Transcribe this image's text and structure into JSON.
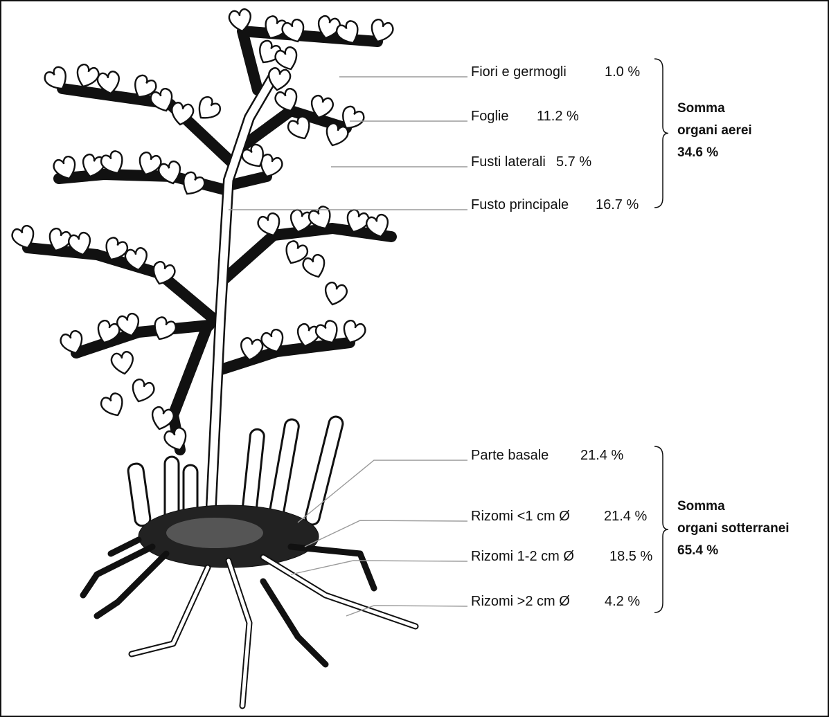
{
  "aerial": {
    "parts": [
      {
        "name": "Fiori e germogli",
        "value": "1.0 %"
      },
      {
        "name": "Foglie",
        "value": "11.2 %"
      },
      {
        "name": "Fusti laterali",
        "value": "5.7 %"
      },
      {
        "name": "Fusto principale",
        "value": "16.7 %"
      }
    ],
    "sum": [
      "Somma",
      "organi aerei",
      "34.6 %"
    ]
  },
  "underground": {
    "parts": [
      {
        "name": "Parte basale",
        "value": "21.4 %"
      },
      {
        "name": "Rizomi <1 cm Ø",
        "value": "21.4 %"
      },
      {
        "name": "Rizomi 1-2 cm Ø",
        "value": "18.5 %"
      },
      {
        "name": "Rizomi >2 cm Ø",
        "value": "4.2 %"
      }
    ],
    "sum": [
      "Somma",
      "organi sotterranei",
      "65.4 %"
    ]
  }
}
